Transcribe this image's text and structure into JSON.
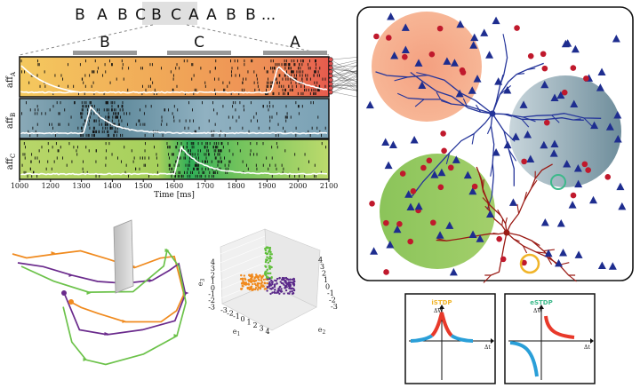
{
  "sequence": {
    "tokens": [
      "B",
      "A",
      "B",
      "C",
      "B",
      "C",
      "A",
      "A",
      "B",
      "B",
      "..."
    ],
    "highlight_range": [
      4,
      6
    ]
  },
  "segment_labels": [
    "B",
    "C",
    "A"
  ],
  "rows": [
    {
      "label_main": "aff",
      "label_sub": "A",
      "colors": [
        "#f2c25a",
        "#ee8a55",
        "#e05050"
      ]
    },
    {
      "label_main": "aff",
      "label_sub": "B",
      "colors": [
        "#5d8b9f",
        "#8fb0c0",
        "#7aa3b6"
      ]
    },
    {
      "label_main": "aff",
      "label_sub": "C",
      "colors": [
        "#9fce55",
        "#1aa24c",
        "#b8d96a"
      ]
    }
  ],
  "time_axis": {
    "ticks": [
      "1000",
      "1200",
      "1300",
      "1400",
      "1500",
      "1600",
      "1700",
      "1800",
      "1900",
      "2000",
      "2100"
    ],
    "label": "Time [ms]"
  },
  "axes3d": {
    "z_label": "e",
    "z_sub": "3",
    "x_label": "e",
    "x_sub": "1",
    "y_label": "e",
    "y_sub": "2",
    "z_ticks": [
      "4",
      "3",
      "2",
      "1",
      "0",
      "-1",
      "-2",
      "-3"
    ],
    "x_ticks": [
      "-3",
      "-2",
      "-1",
      "0",
      "1",
      "2",
      "3",
      "4"
    ],
    "y_ticks": [
      "-3",
      "-2",
      "-1",
      "0",
      "1",
      "2",
      "3",
      "4"
    ]
  },
  "stdp_panels": [
    {
      "title": "iSTDP",
      "title_color": "#f0b429",
      "dw": "ΔW",
      "dt": "Δt"
    },
    {
      "title": "eSTDP",
      "title_color": "#3cb98a",
      "dw": "ΔW",
      "dt": "Δt"
    }
  ],
  "colors": {
    "excitatory": "#1e2d8f",
    "inhibitory": "#c0192c",
    "dendrite_exc": "#25359a",
    "dendrite_inh": "#9a1a14",
    "circle_A": "#f3a383",
    "circle_B": "#7d99a6",
    "circle_C": "#8fc45a",
    "stdp_red": "#e8392a",
    "stdp_blue": "#2a9fd8"
  }
}
